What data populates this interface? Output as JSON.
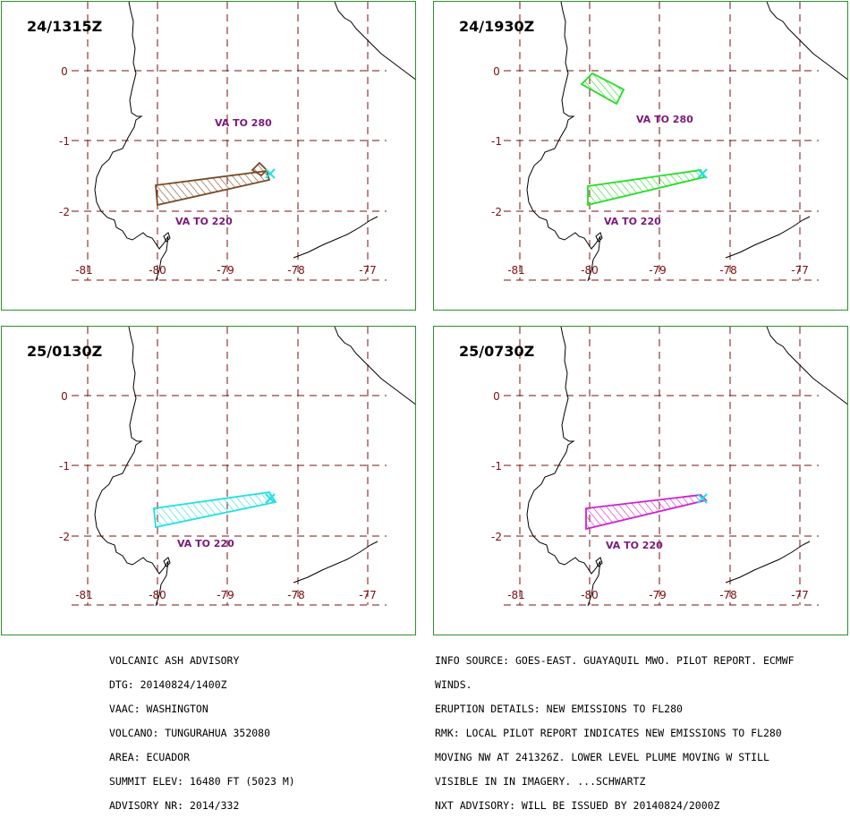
{
  "panels": [
    {
      "title": "24/1315Z",
      "color": "#7a4a26",
      "labels": [
        "VA TO 280",
        "VA TO 220"
      ]
    },
    {
      "title": "24/1930Z",
      "color": "#22dd22",
      "labels": [
        "VA TO 280",
        "VA TO 220"
      ]
    },
    {
      "title": "25/0130Z",
      "color": "#22e0e0",
      "labels": [
        "VA TO 220"
      ]
    },
    {
      "title": "25/0730Z",
      "color": "#d020d0",
      "labels": [
        "VA TO 220"
      ]
    }
  ],
  "axes": {
    "lat_ticks": [
      "0",
      "-1",
      "-2"
    ],
    "lon_ticks": [
      "-81",
      "-80",
      "-79",
      "-78",
      "-77"
    ]
  },
  "colors": {
    "grid": "#7a1010",
    "frame": "#2f8f2f",
    "label": "#7a1a7a",
    "volcano": "#22e0e0"
  },
  "advisory_left": [
    "VOLCANIC ASH ADVISORY",
    "DTG: 20140824/1400Z",
    "VAAC: WASHINGTON",
    "VOLCANO: TUNGURAHUA 352080",
    "AREA: ECUADOR",
    "SUMMIT ELEV: 16480 FT (5023 M)",
    "ADVISORY NR: 2014/332"
  ],
  "advisory_right": [
    "INFO SOURCE: GOES-EAST. GUAYAQUIL MWO. PILOT REPORT. ECMWF",
    "WINDS.",
    "ERUPTION DETAILS: NEW EMISSIONS TO FL280",
    "RMK: LOCAL PILOT REPORT INDICATES NEW EMISSIONS TO FL280",
    "MOVING NW AT 241326Z. LOWER LEVEL PLUME MOVING W STILL",
    "VISIBLE IN IN IMAGERY. ...SCHWARTZ",
    "NXT ADVISORY: WILL BE ISSUED BY 20140824/2000Z"
  ]
}
